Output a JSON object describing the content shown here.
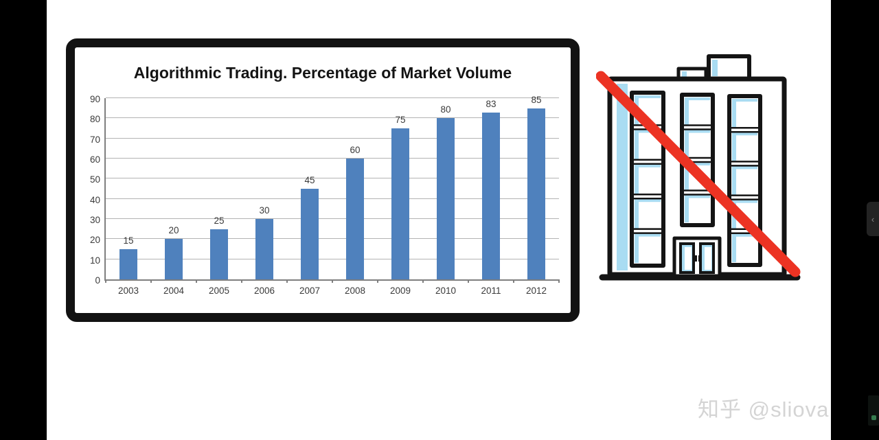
{
  "watermark": {
    "text": "知乎 @sliova"
  },
  "side_panel_toggle": {
    "chevron_icon": "‹"
  },
  "chart_data": {
    "type": "bar",
    "title": "Algorithmic Trading. Percentage of Market Volume",
    "categories": [
      "2003",
      "2004",
      "2005",
      "2006",
      "2007",
      "2008",
      "2009",
      "2010",
      "2011",
      "2012"
    ],
    "values": [
      15,
      20,
      25,
      30,
      45,
      60,
      75,
      80,
      83,
      85
    ],
    "xlabel": "",
    "ylabel": "",
    "ylim": [
      0,
      90
    ],
    "ytick_step": 10,
    "grid": true,
    "legend": false,
    "value_labels": true,
    "bar_color": "#4f81bd",
    "gridline_color": "#b3b3b3",
    "axis_color": "#7f7f7f",
    "tick_label_color": "#3a3a3a"
  },
  "illustration": {
    "name": "office-building-crossed-out",
    "outline_color": "#141414",
    "window_color": "#a9dcf2",
    "cross_color": "#ec3323"
  }
}
